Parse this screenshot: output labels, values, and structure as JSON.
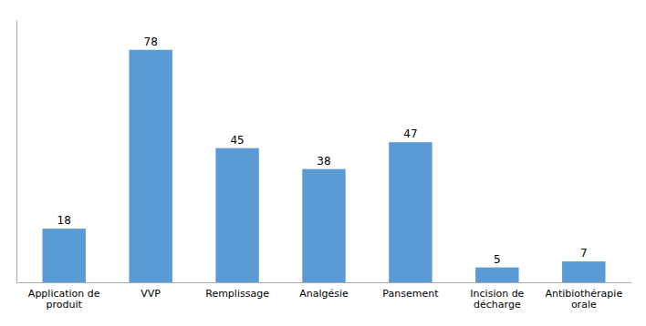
{
  "chart_data": {
    "type": "bar",
    "categories": [
      "Application de\nproduit",
      "VVP",
      "Remplissage",
      "Analgésie",
      "Pansement",
      "Incision de\ndécharge",
      "Antibiothérapie\norale"
    ],
    "values": [
      18,
      78,
      45,
      38,
      47,
      5,
      7
    ],
    "color": "#5B9BD5",
    "ylim": [
      0,
      88
    ],
    "data_labels": true,
    "tick_labels": "x"
  }
}
